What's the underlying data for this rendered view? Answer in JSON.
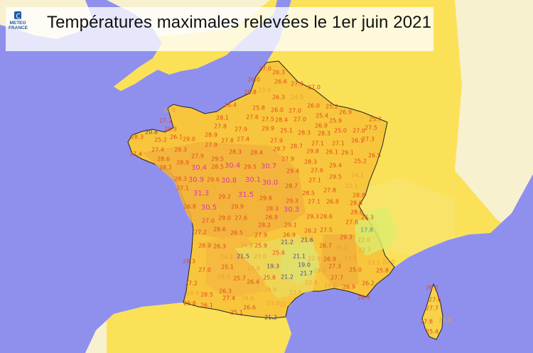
{
  "header": {
    "title": "Températures maximales relevées le 1er juin 2021",
    "logo_line1": "METEO",
    "logo_line2": "FRANCE"
  },
  "colors": {
    "sea": "#8f90ee",
    "land_far": "#f8f1cf",
    "land_near": "#fbe158",
    "france": "#f8c63c",
    "france_hot": "#f3b23c",
    "cool_zone": "#e4ea6a",
    "text_hot": "#d83aa8",
    "text_warm": "#e04a1c",
    "text_mild": "#e8a233",
    "text_cool": "#3b4a98",
    "text_cold": "#3a98a0"
  },
  "stations": [
    "27.0",
    "26.0",
    "23.9",
    "26.8",
    "26.4",
    "22.8",
    "25.8",
    "28.1",
    "27.6",
    "27.2",
    "28.3",
    "27.8",
    "27.9",
    "28.9",
    "27.8",
    "27.4",
    "29.0",
    "26.1",
    "25.2",
    "20.8",
    "27.9",
    "28.3",
    "27.4",
    "27.4",
    "29.3",
    "28.6",
    "28.9",
    "28.2",
    "27.9",
    "29.5",
    "28.3",
    "28.4",
    "30.4",
    "28.5",
    "30.4",
    "29.5",
    "30.7",
    "28.3",
    "30.9",
    "29.6",
    "30.8",
    "30.1",
    "30.0",
    "27.1",
    "31.3",
    "29.2",
    "31.5",
    "29.6",
    "26.8",
    "30.5",
    "29.9",
    "29.0",
    "27.6",
    "28.3",
    "30.3",
    "26.9",
    "28.2",
    "29.1",
    "26.9",
    "21.2",
    "21.6",
    "26.2",
    "27.5",
    "27.1",
    "29.3",
    "28.6",
    "26.8",
    "28.5",
    "29.3",
    "27.8",
    "27.0",
    "28.6",
    "26.5",
    "27.9",
    "27.2",
    "28.9",
    "26.3",
    "24.8",
    "25.9",
    "28.3",
    "24.2",
    "21.5",
    "23.0",
    "25.6",
    "21.1",
    "27.0",
    "25.1",
    "22.8",
    "19.3",
    "19.0",
    "24.3",
    "25.7",
    "26.4",
    "25.8",
    "21.2",
    "21.7",
    "27.2",
    "22.9",
    "24.9",
    "28.5",
    "26.3",
    "24.9",
    "22.6",
    "26.6",
    "26.1",
    "27.4",
    "24.6",
    "26.6",
    "25.1",
    "23.0",
    "22.6",
    "21.2",
    "17.8",
    "29.3",
    "22.0",
    "26.7",
    "24.2",
    "22.7",
    "22.9",
    "26.9",
    "24.6",
    "23.1",
    "22.0",
    "27.3",
    "25.0",
    "25.8",
    "24.9",
    "27.7",
    "24.0",
    "26.9",
    "26.2",
    "26.4",
    "26.0",
    "27.6",
    "27.7",
    "27.8",
    "23.0",
    "25.4",
    "26.3",
    "26.6",
    "27.9",
    "27.0",
    "26.3",
    "24.5",
    "26.0",
    "25.2",
    "26.9",
    "25.7",
    "26.0",
    "27.0",
    "27.5",
    "28.4",
    "27.0",
    "25.4",
    "25.9",
    "27.5",
    "29.9",
    "25.1",
    "28.3",
    "26.9",
    "28.3",
    "25.0",
    "27.0",
    "26.1",
    "27.3",
    "27.9",
    "28.7",
    "27.1",
    "27.1",
    "29.7",
    "29.8",
    "26.1",
    "29.1",
    "26.5",
    "27.9",
    "28.3",
    "25.2",
    "29.4",
    "29.4",
    "27.6",
    "24.1",
    "29.5",
    "27.1",
    "28.7",
    "22.1",
    "28.8",
    "28.6",
    "28.6",
    "26.3",
    "27.8"
  ]
}
